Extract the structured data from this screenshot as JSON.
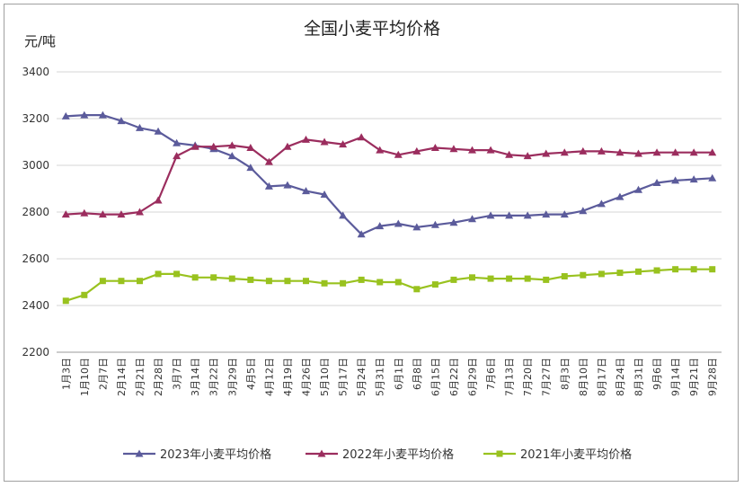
{
  "chart_data": {
    "type": "line",
    "title": "全国小麦平均价格",
    "ylabel": "元/吨",
    "xlabel": "",
    "ylim": [
      2200,
      3400
    ],
    "yticks": [
      2200,
      2400,
      2600,
      2800,
      3000,
      3200,
      3400
    ],
    "grid": true,
    "legend_position": "bottom",
    "categories": [
      "1月3日",
      "1月10日",
      "2月7日",
      "2月14日",
      "2月21日",
      "2月28日",
      "3月7日",
      "3月14日",
      "3月22日",
      "3月29日",
      "4月5日",
      "4月12日",
      "4月19日",
      "4月26日",
      "5月10日",
      "5月17日",
      "5月24日",
      "5月31日",
      "6月1日",
      "6月8日",
      "6月15日",
      "6月22日",
      "6月29日",
      "7月6日",
      "7月13日",
      "7月20日",
      "7月27日",
      "8月3日",
      "8月10日",
      "8月17日",
      "8月24日",
      "8月31日",
      "9月6日",
      "9月14日",
      "9月21日",
      "9月28日"
    ],
    "series": [
      {
        "name": "2023年小麦平均价格",
        "color": "#5b5b9b",
        "marker": "triangle",
        "values": [
          3210,
          3215,
          3215,
          3190,
          3160,
          3145,
          3095,
          3085,
          3070,
          3040,
          2990,
          2910,
          2915,
          2890,
          2875,
          2785,
          2705,
          2740,
          2750,
          2735,
          2745,
          2755,
          2770,
          2785,
          2785,
          2785,
          2790,
          2790,
          2805,
          2835,
          2865,
          2895,
          2925,
          2935,
          2940,
          2945
        ]
      },
      {
        "name": "2022年小麦平均价格",
        "color": "#9b2d5e",
        "marker": "triangle",
        "values": [
          2790,
          2795,
          2790,
          2790,
          2800,
          2850,
          3040,
          3080,
          3080,
          3085,
          3075,
          3015,
          3080,
          3110,
          3100,
          3090,
          3120,
          3065,
          3045,
          3060,
          3075,
          3070,
          3065,
          3065,
          3045,
          3040,
          3050,
          3055,
          3060,
          3060,
          3055,
          3050,
          3055,
          3055,
          3055,
          3055
        ]
      },
      {
        "name": "2021年小麦平均价格",
        "color": "#99c21f",
        "marker": "square",
        "values": [
          2420,
          2445,
          2505,
          2505,
          2505,
          2535,
          2535,
          2520,
          2520,
          2515,
          2510,
          2505,
          2505,
          2505,
          2495,
          2495,
          2510,
          2500,
          2500,
          2470,
          2490,
          2510,
          2520,
          2515,
          2515,
          2515,
          2510,
          2525,
          2530,
          2535,
          2540,
          2545,
          2550,
          2555,
          2555,
          2555
        ]
      }
    ]
  }
}
